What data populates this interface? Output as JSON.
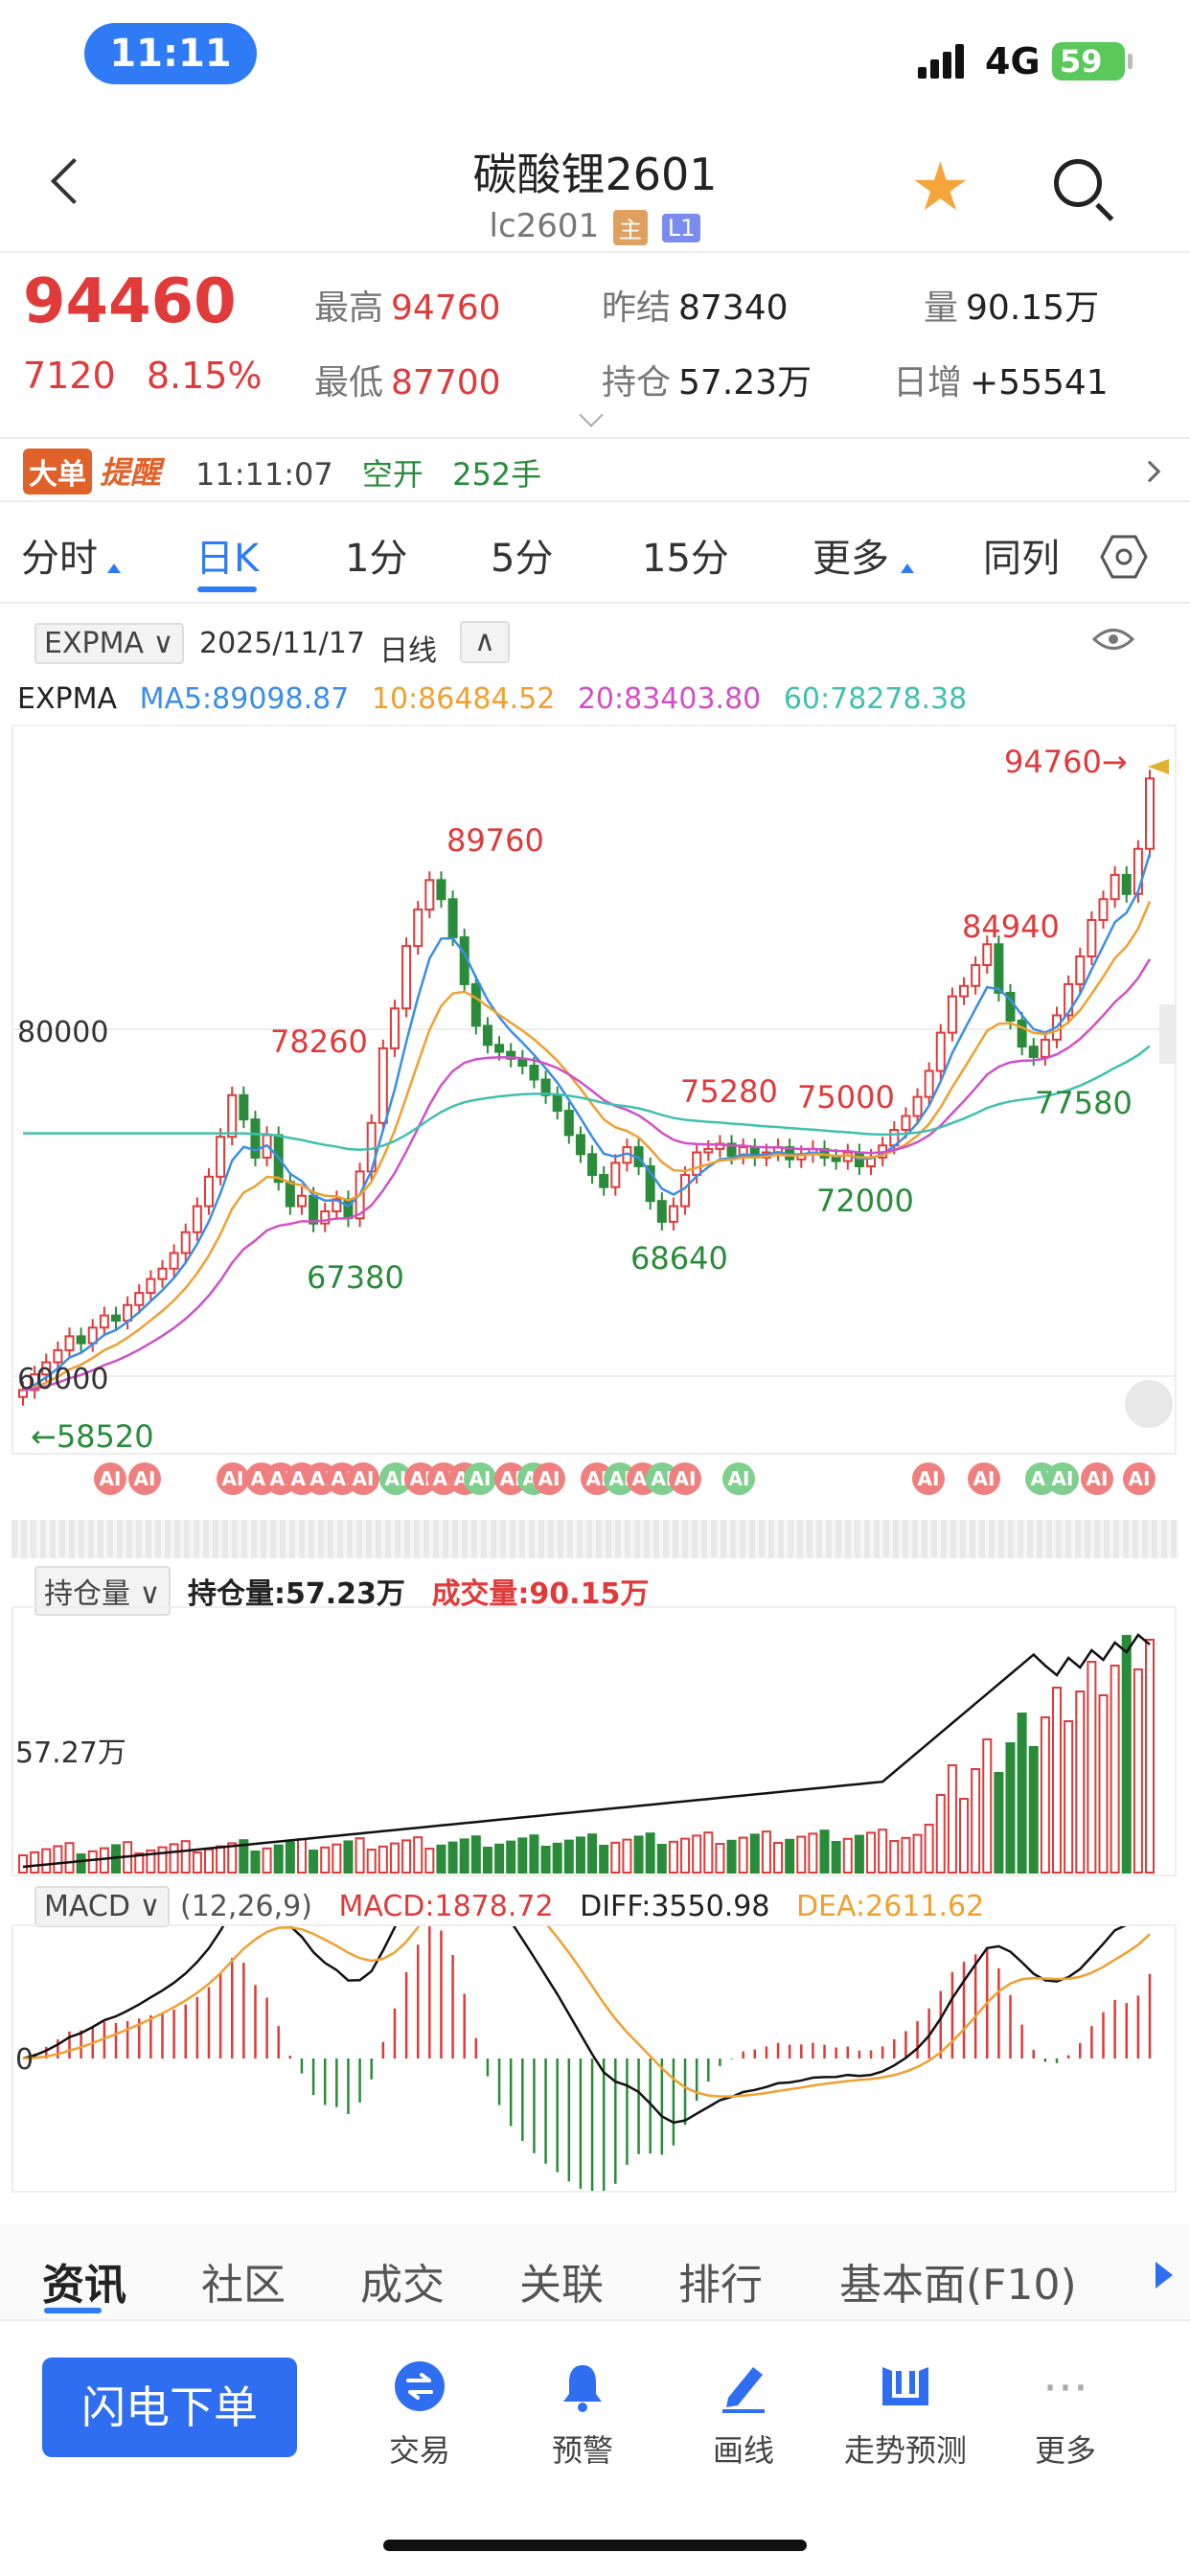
{
  "status": {
    "time": "11:11",
    "network": "4G",
    "battery": "59"
  },
  "header": {
    "title": "碳酸锂2601",
    "code": "lc2601",
    "tag_main": "主",
    "tag_level": "L1"
  },
  "quote": {
    "price": "94460",
    "change": "7120",
    "change_pct": "8.15%",
    "high_label": "最高",
    "high": "94760",
    "low_label": "最低",
    "low": "87700",
    "prev_label": "昨结",
    "prev": "87340",
    "oi_label": "持仓",
    "oi": "57.23万",
    "vol_label": "量",
    "vol": "90.15万",
    "daily_label": "日增",
    "daily": "+55541"
  },
  "alert": {
    "badge": "大单",
    "label": "提醒",
    "time": "11:11:07",
    "type": "空开",
    "qty": "252手"
  },
  "tabs": [
    "分时",
    "日K",
    "1分",
    "5分",
    "15分",
    "更多",
    "同列"
  ],
  "kline": {
    "indicator": "EXPMA",
    "date": "2025/11/17",
    "period": "日线",
    "ma_name": "EXPMA",
    "ma5": "MA5:89098.87",
    "ma10": "10:86484.52",
    "ma20": "20:83403.80",
    "ma60": "60:78278.38",
    "y_labels": [
      "80000",
      "60000"
    ],
    "annotations": [
      "94760→",
      "89760",
      "78260",
      "67380",
      "68640",
      "75280",
      "75000",
      "72000",
      "84940",
      "77580",
      "←58520"
    ],
    "colors": {
      "ma5": "#3a8ee6",
      "ma10": "#f0a030",
      "ma20": "#d050c8",
      "ma60": "#40c0b0",
      "up": "#e03a3a",
      "down": "#2a8c3a"
    }
  },
  "ai_label": "AI",
  "oi_panel": {
    "selector": "持仓量",
    "oi": "持仓量:57.23万",
    "vol": "成交量:90.15万",
    "y_label": "57.27万"
  },
  "macd_panel": {
    "selector": "MACD",
    "params": "(12,26,9)",
    "macd": "MACD:1878.72",
    "diff": "DIFF:3550.98",
    "dea": "DEA:2611.62",
    "zero": "0"
  },
  "bottom_tabs": [
    "资讯",
    "社区",
    "成交",
    "关联",
    "排行",
    "基本面(F10)"
  ],
  "toolbar": {
    "order": "闪电下单",
    "items": [
      "交易",
      "预警",
      "画线",
      "走势预测",
      "更多"
    ]
  }
}
